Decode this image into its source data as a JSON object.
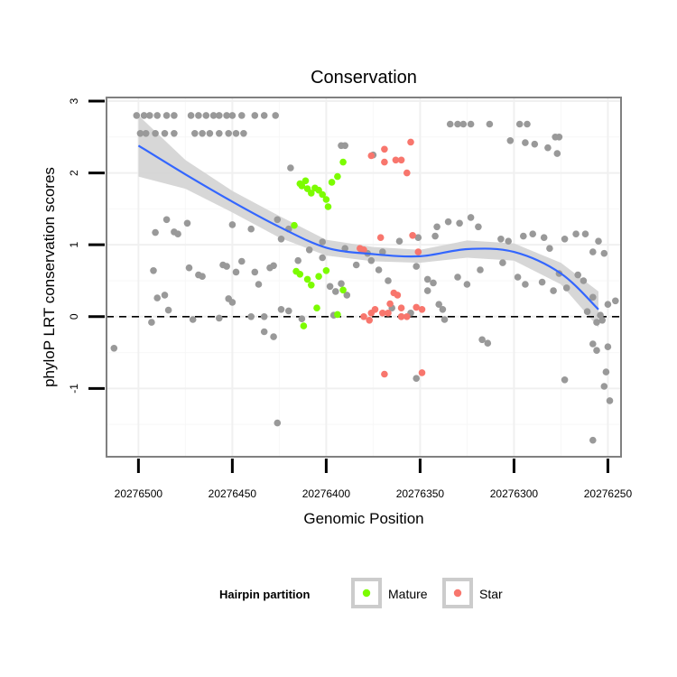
{
  "chart_data": {
    "type": "scatter",
    "title": "Conservation",
    "xlabel": "Genomic Position",
    "ylabel": "phyloP LRT conservation scores",
    "xlim": [
      20276517,
      20276243
    ],
    "x_reversed": true,
    "ylim": [
      -1.95,
      3.05
    ],
    "x_ticks": [
      20276500,
      20276450,
      20276400,
      20276350,
      20276300,
      20276250
    ],
    "y_ticks": [
      3,
      2,
      1,
      0,
      -1
    ],
    "reference_line": {
      "y": 0,
      "style": "dashed"
    },
    "grid": true,
    "legend": {
      "title": "Hairpin partition",
      "placement": "bottom",
      "entries": [
        {
          "name": "Mature",
          "color": "#7cfc00"
        },
        {
          "name": "Star",
          "color": "#f8766d"
        }
      ]
    },
    "colors": {
      "other": "#999999",
      "mature": "#7cfc00",
      "star": "#f8766d",
      "smooth": "#3366ff",
      "band": "#d3d3d3"
    },
    "series": [
      {
        "group": "other",
        "points": [
          [
            20276501,
            2.8
          ],
          [
            20276497,
            2.8
          ],
          [
            20276494,
            2.8
          ],
          [
            20276490,
            2.8
          ],
          [
            20276485,
            2.8
          ],
          [
            20276481,
            2.8
          ],
          [
            20276472,
            2.8
          ],
          [
            20276468,
            2.8
          ],
          [
            20276464,
            2.8
          ],
          [
            20276460,
            2.8
          ],
          [
            20276457,
            2.8
          ],
          [
            20276453,
            2.8
          ],
          [
            20276450,
            2.8
          ],
          [
            20276445,
            2.8
          ],
          [
            20276438,
            2.8
          ],
          [
            20276433,
            2.8
          ],
          [
            20276427,
            2.8
          ],
          [
            20276499,
            2.55
          ],
          [
            20276496,
            2.55
          ],
          [
            20276491,
            2.55
          ],
          [
            20276486,
            2.55
          ],
          [
            20276481,
            2.55
          ],
          [
            20276470,
            2.55
          ],
          [
            20276466,
            2.55
          ],
          [
            20276462,
            2.55
          ],
          [
            20276457,
            2.55
          ],
          [
            20276452,
            2.55
          ],
          [
            20276448,
            2.55
          ],
          [
            20276444,
            2.55
          ],
          [
            20276392,
            2.38
          ],
          [
            20276390,
            2.38
          ],
          [
            20276375,
            2.25
          ],
          [
            20276334,
            2.68
          ],
          [
            20276330,
            2.68
          ],
          [
            20276327,
            2.68
          ],
          [
            20276323,
            2.68
          ],
          [
            20276313,
            2.68
          ],
          [
            20276297,
            2.68
          ],
          [
            20276293,
            2.68
          ],
          [
            20276302,
            2.45
          ],
          [
            20276294,
            2.42
          ],
          [
            20276289,
            2.4
          ],
          [
            20276282,
            2.35
          ],
          [
            20276278,
            2.5
          ],
          [
            20276276,
            2.5
          ],
          [
            20276277,
            2.27
          ],
          [
            20276419,
            2.07
          ],
          [
            20276485,
            1.35
          ],
          [
            20276481,
            1.18
          ],
          [
            20276491,
            1.17
          ],
          [
            20276479,
            1.15
          ],
          [
            20276474,
            1.3
          ],
          [
            20276450,
            1.28
          ],
          [
            20276440,
            1.22
          ],
          [
            20276426,
            1.35
          ],
          [
            20276420,
            1.22
          ],
          [
            20276424,
            1.08
          ],
          [
            20276409,
            0.93
          ],
          [
            20276402,
            1.04
          ],
          [
            20276390,
            0.95
          ],
          [
            20276370,
            0.9
          ],
          [
            20276381,
            0.92
          ],
          [
            20276361,
            1.05
          ],
          [
            20276351,
            1.1
          ],
          [
            20276342,
            1.12
          ],
          [
            20276341,
            1.25
          ],
          [
            20276335,
            1.32
          ],
          [
            20276329,
            1.3
          ],
          [
            20276323,
            1.38
          ],
          [
            20276319,
            1.25
          ],
          [
            20276307,
            1.08
          ],
          [
            20276303,
            1.05
          ],
          [
            20276295,
            1.12
          ],
          [
            20276290,
            1.15
          ],
          [
            20276284,
            1.1
          ],
          [
            20276281,
            0.95
          ],
          [
            20276273,
            1.08
          ],
          [
            20276267,
            1.15
          ],
          [
            20276262,
            1.15
          ],
          [
            20276258,
            0.9
          ],
          [
            20276255,
            1.05
          ],
          [
            20276252,
            0.88
          ],
          [
            20276492,
            0.64
          ],
          [
            20276490,
            0.26
          ],
          [
            20276486,
            0.3
          ],
          [
            20276484,
            0.09
          ],
          [
            20276473,
            0.68
          ],
          [
            20276468,
            0.58
          ],
          [
            20276466,
            0.56
          ],
          [
            20276471,
            -0.04
          ],
          [
            20276455,
            0.72
          ],
          [
            20276453,
            0.7
          ],
          [
            20276448,
            0.62
          ],
          [
            20276445,
            0.77
          ],
          [
            20276438,
            0.62
          ],
          [
            20276436,
            0.45
          ],
          [
            20276430,
            0.68
          ],
          [
            20276428,
            0.71
          ],
          [
            20276452,
            0.25
          ],
          [
            20276450,
            0.2
          ],
          [
            20276457,
            -0.02
          ],
          [
            20276440,
            0.0
          ],
          [
            20276433,
            0.0
          ],
          [
            20276433,
            -0.21
          ],
          [
            20276428,
            -0.28
          ],
          [
            20276424,
            0.1
          ],
          [
            20276420,
            0.08
          ],
          [
            20276415,
            0.78
          ],
          [
            20276402,
            0.82
          ],
          [
            20276398,
            0.42
          ],
          [
            20276395,
            0.35
          ],
          [
            20276392,
            0.46
          ],
          [
            20276389,
            0.3
          ],
          [
            20276384,
            0.72
          ],
          [
            20276378,
            0.88
          ],
          [
            20276376,
            0.78
          ],
          [
            20276372,
            0.65
          ],
          [
            20276367,
            0.5
          ],
          [
            20276352,
            0.7
          ],
          [
            20276346,
            0.52
          ],
          [
            20276346,
            0.36
          ],
          [
            20276343,
            0.47
          ],
          [
            20276340,
            0.17
          ],
          [
            20276338,
            0.1
          ],
          [
            20276337,
            -0.04
          ],
          [
            20276365,
            0.12
          ],
          [
            20276360,
            0.0
          ],
          [
            20276355,
            0.05
          ],
          [
            20276330,
            0.55
          ],
          [
            20276325,
            0.45
          ],
          [
            20276318,
            0.65
          ],
          [
            20276306,
            0.75
          ],
          [
            20276298,
            0.55
          ],
          [
            20276294,
            0.45
          ],
          [
            20276285,
            0.48
          ],
          [
            20276276,
            0.6
          ],
          [
            20276272,
            0.4
          ],
          [
            20276266,
            0.58
          ],
          [
            20276263,
            0.5
          ],
          [
            20276258,
            0.27
          ],
          [
            20276250,
            0.17
          ],
          [
            20276246,
            0.22
          ],
          [
            20276261,
            0.07
          ],
          [
            20276256,
            -0.08
          ],
          [
            20276253,
            -0.05
          ],
          [
            20276254,
            0.02
          ],
          [
            20276513,
            -0.44
          ],
          [
            20276493,
            -0.08
          ],
          [
            20276413,
            -0.03
          ],
          [
            20276352,
            -0.86
          ],
          [
            20276317,
            -0.32
          ],
          [
            20276314,
            -0.37
          ],
          [
            20276279,
            0.36
          ],
          [
            20276273,
            -0.88
          ],
          [
            20276258,
            -0.38
          ],
          [
            20276256,
            -0.47
          ],
          [
            20276251,
            -0.77
          ],
          [
            20276252,
            -0.97
          ],
          [
            20276249,
            -1.17
          ],
          [
            20276250,
            -0.42
          ],
          [
            20276258,
            -1.72
          ],
          [
            20276426,
            -1.48
          ],
          [
            20276396,
            0.02
          ]
        ]
      },
      {
        "group": "mature",
        "points": [
          [
            20276414,
            1.85
          ],
          [
            20276413,
            1.82
          ],
          [
            20276411,
            1.89
          ],
          [
            20276410,
            1.78
          ],
          [
            20276408,
            1.72
          ],
          [
            20276406,
            1.79
          ],
          [
            20276404,
            1.76
          ],
          [
            20276402,
            1.7
          ],
          [
            20276400,
            1.63
          ],
          [
            20276399,
            1.53
          ],
          [
            20276397,
            1.87
          ],
          [
            20276394,
            1.95
          ],
          [
            20276391,
            2.15
          ],
          [
            20276417,
            1.27
          ],
          [
            20276416,
            0.63
          ],
          [
            20276414,
            0.59
          ],
          [
            20276408,
            0.44
          ],
          [
            20276410,
            0.52
          ],
          [
            20276404,
            0.56
          ],
          [
            20276400,
            0.64
          ],
          [
            20276391,
            0.37
          ],
          [
            20276405,
            0.12
          ],
          [
            20276394,
            0.03
          ],
          [
            20276412,
            -0.13
          ]
        ]
      },
      {
        "group": "star",
        "points": [
          [
            20276376,
            2.24
          ],
          [
            20276369,
            2.33
          ],
          [
            20276369,
            2.15
          ],
          [
            20276363,
            2.18
          ],
          [
            20276360,
            2.18
          ],
          [
            20276357,
            2.0
          ],
          [
            20276355,
            2.43
          ],
          [
            20276371,
            1.1
          ],
          [
            20276354,
            1.13
          ],
          [
            20276351,
            0.9
          ],
          [
            20276364,
            0.33
          ],
          [
            20276362,
            0.3
          ],
          [
            20276366,
            0.18
          ],
          [
            20276360,
            0.12
          ],
          [
            20276352,
            0.13
          ],
          [
            20276349,
            0.1
          ],
          [
            20276370,
            0.05
          ],
          [
            20276377,
            -0.05
          ],
          [
            20276374,
            0.1
          ],
          [
            20276376,
            0.05
          ],
          [
            20276380,
            0.0
          ],
          [
            20276367,
            0.05
          ],
          [
            20276357,
            0.0
          ],
          [
            20276360,
            0.0
          ],
          [
            20276369,
            -0.8
          ],
          [
            20276349,
            -0.78
          ],
          [
            20276382,
            0.95
          ],
          [
            20276380,
            0.93
          ]
        ]
      }
    ],
    "smooth_line": {
      "x": [
        20276500,
        20276475,
        20276450,
        20276425,
        20276400,
        20276375,
        20276350,
        20276325,
        20276300,
        20276275,
        20276255
      ],
      "y": [
        2.38,
        1.98,
        1.6,
        1.25,
        0.96,
        0.87,
        0.84,
        0.94,
        0.9,
        0.6,
        0.1
      ],
      "band_lower": [
        1.95,
        1.78,
        1.45,
        1.1,
        0.85,
        0.77,
        0.75,
        0.82,
        0.78,
        0.45,
        -0.15
      ],
      "band_upper": [
        2.8,
        2.18,
        1.75,
        1.4,
        1.07,
        0.97,
        0.93,
        1.06,
        1.02,
        0.75,
        0.35
      ]
    }
  }
}
